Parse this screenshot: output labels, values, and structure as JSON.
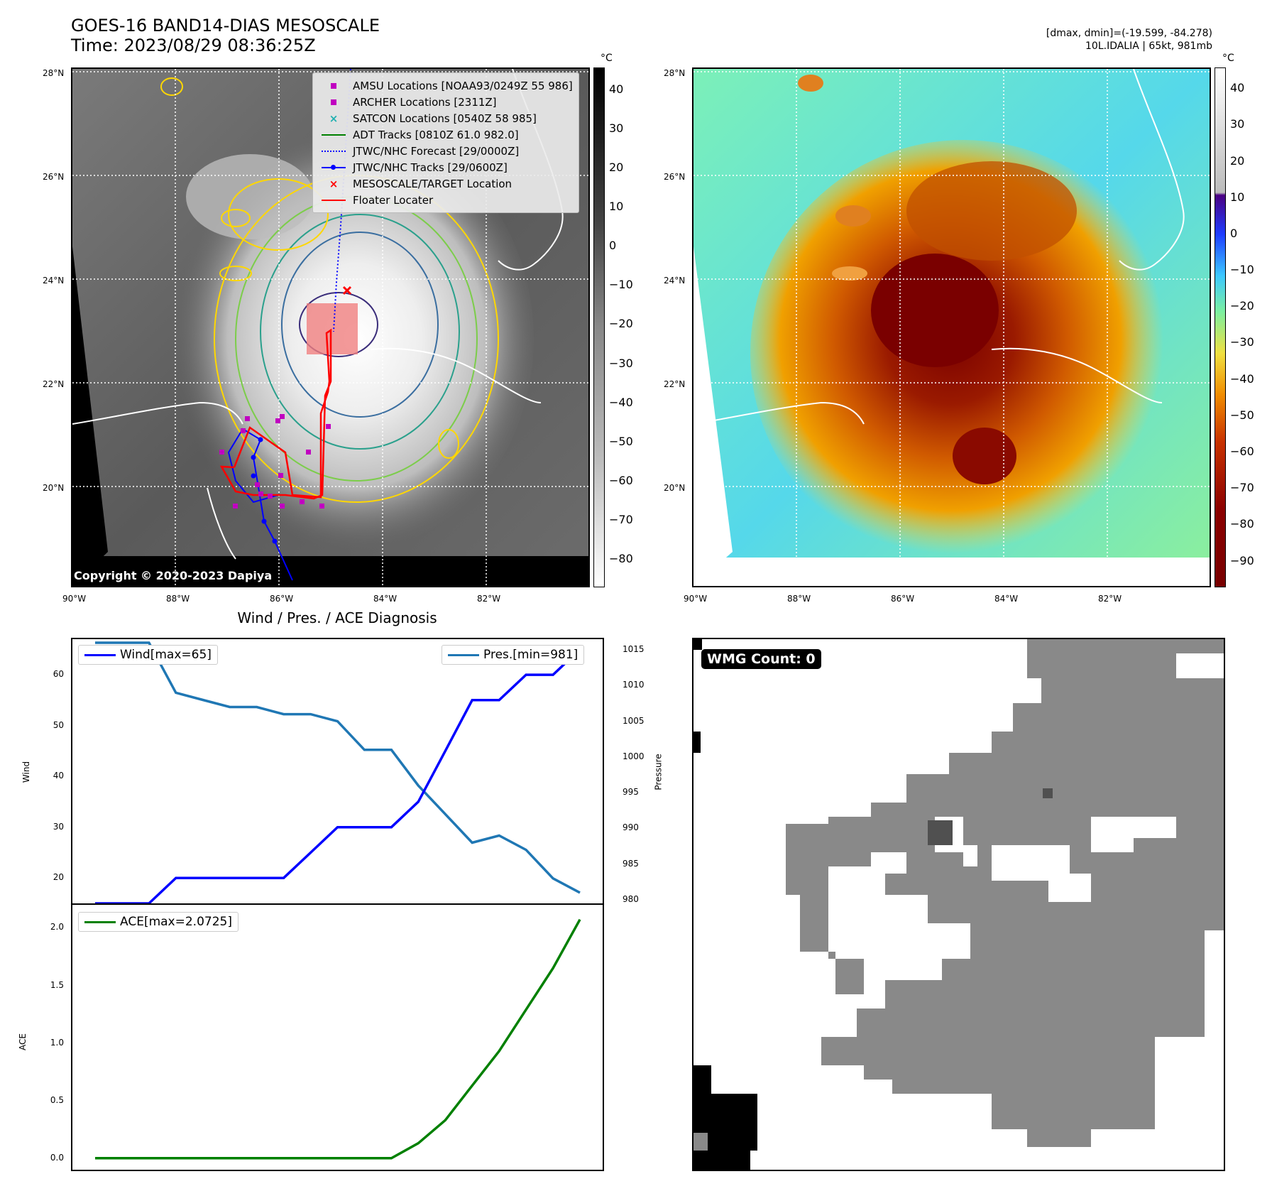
{
  "header": {
    "title_line1": "GOES-16 BAND14-DIAS MESOSCALE",
    "title_line2": "Time: 2023/08/29 08:36:25Z",
    "info_line1": "[dmax, dmin]=(-19.599, -84.278)",
    "info_line2": "10L.IDALIA | 65kt, 981mb"
  },
  "map_axes": {
    "lon_ticks": [
      "90°W",
      "88°W",
      "86°W",
      "84°W",
      "82°W"
    ],
    "lat_ticks": [
      "28°N",
      "26°N",
      "24°N",
      "22°N",
      "20°N"
    ]
  },
  "colorbar_left": {
    "unit": "°C",
    "ticks": [
      "40",
      "30",
      "20",
      "10",
      "0",
      "−10",
      "−20",
      "−30",
      "−40",
      "−50",
      "−60",
      "−70",
      "−80"
    ]
  },
  "colorbar_right": {
    "unit": "°C",
    "ticks": [
      "40",
      "30",
      "20",
      "10",
      "0",
      "−10",
      "−20",
      "−30",
      "−40",
      "−50",
      "−60",
      "−70",
      "−80",
      "−90"
    ]
  },
  "legend": {
    "items": [
      {
        "label": "AMSU Locations [NOAA93/0249Z 55 986]",
        "symbol": "square",
        "color": "#c000c0"
      },
      {
        "label": "ARCHER Locations [2311Z]",
        "symbol": "square",
        "color": "#c000c0"
      },
      {
        "label": "SATCON Locations [0540Z 58 985]",
        "symbol": "x",
        "color": "#20b0b0"
      },
      {
        "label": "ADT Tracks [0810Z 61.0 982.0]",
        "symbol": "line",
        "color": "#008000"
      },
      {
        "label": "JTWC/NHC Forecast [29/0000Z]",
        "symbol": "dotted",
        "color": "#0000ff"
      },
      {
        "label": "JTWC/NHC Tracks [29/0600Z]",
        "symbol": "line-dot",
        "color": "#0000ff"
      },
      {
        "label": "MESOSCALE/TARGET Location",
        "symbol": "x",
        "color": "#ff0000"
      },
      {
        "label": "Floater Locater",
        "symbol": "line",
        "color": "#ff0000"
      }
    ]
  },
  "copyright": "Copyright © 2020-2023 Dapiya",
  "wind_panel": {
    "title": "Wind / Pres. / ACE Diagnosis",
    "wind_legend": "Wind[max=65]",
    "pres_legend": "Pres.[min=981]",
    "ylabel_left": "Wind",
    "ylabel_right": "Pressure",
    "wind_ticks": [
      "60",
      "50",
      "40",
      "30",
      "20"
    ],
    "pres_ticks": [
      "1015",
      "1010",
      "1005",
      "1000",
      "995",
      "990",
      "985",
      "980"
    ]
  },
  "ace_panel": {
    "legend": "ACE[max=2.0725]",
    "ylabel": "ACE",
    "ticks": [
      "2.0",
      "1.5",
      "1.0",
      "0.5",
      "0.0"
    ]
  },
  "wmg": {
    "label": "WMG Count: 0"
  },
  "chart_data": [
    {
      "type": "line",
      "x": [
        0,
        1,
        2,
        3,
        4,
        5,
        6,
        7,
        8,
        9,
        10,
        11,
        12,
        13,
        14,
        15,
        16,
        17,
        18
      ],
      "series": [
        {
          "name": "Wind[max=65]",
          "values": [
            15,
            15,
            15,
            20,
            20,
            20,
            20,
            20,
            25,
            30,
            30,
            30,
            35,
            45,
            55,
            55,
            60,
            60,
            65
          ],
          "color": "#0000ff"
        }
      ],
      "ylabel": "Wind",
      "ylim": [
        15,
        67
      ]
    },
    {
      "type": "line",
      "x": [
        0,
        1,
        2,
        3,
        4,
        5,
        6,
        7,
        8,
        9,
        10,
        11,
        12,
        13,
        14,
        15,
        16,
        17,
        18
      ],
      "series": [
        {
          "name": "Pres.[min=981]",
          "values": [
            1016,
            1016,
            1016,
            1009,
            1008,
            1007,
            1007,
            1006,
            1006,
            1005,
            1001,
            1001,
            996,
            992,
            988,
            989,
            987,
            983,
            981
          ],
          "color": "#1f77b4"
        }
      ],
      "ylabel": "Pressure",
      "ylim": [
        979.5,
        1016.5
      ]
    },
    {
      "type": "line",
      "x": [
        0,
        1,
        2,
        3,
        4,
        5,
        6,
        7,
        8,
        9,
        10,
        11,
        12,
        13,
        14,
        15,
        16,
        17,
        18
      ],
      "series": [
        {
          "name": "ACE[max=2.0725]",
          "values": [
            0,
            0,
            0,
            0,
            0,
            0,
            0,
            0,
            0,
            0,
            0,
            0,
            0.13,
            0.33,
            0.63,
            0.93,
            1.29,
            1.65,
            2.0725
          ],
          "color": "#008000"
        }
      ],
      "ylabel": "ACE",
      "ylim": [
        -0.1,
        2.2
      ]
    }
  ]
}
